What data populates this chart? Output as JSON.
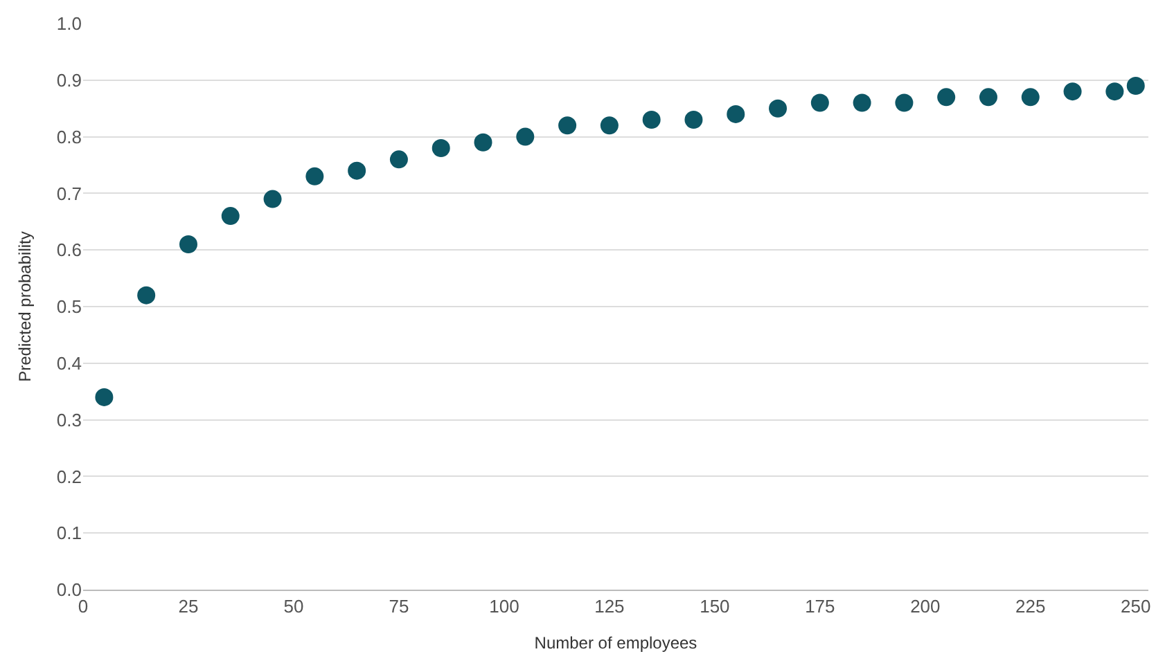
{
  "chart_data": {
    "type": "scatter",
    "xlabel": "Number of employees",
    "ylabel": "Predicted probability",
    "x": [
      5,
      15,
      25,
      35,
      45,
      55,
      65,
      75,
      85,
      95,
      105,
      115,
      125,
      135,
      145,
      155,
      165,
      175,
      185,
      195,
      205,
      215,
      225,
      235,
      245,
      250
    ],
    "series": [
      {
        "color": "#0d5665",
        "values": [
          0.34,
          0.52,
          0.61,
          0.66,
          0.69,
          0.73,
          0.74,
          0.76,
          0.78,
          0.79,
          0.8,
          0.82,
          0.82,
          0.83,
          0.83,
          0.84,
          0.85,
          0.86,
          0.86,
          0.86,
          0.87,
          0.87,
          0.87,
          0.88,
          0.88,
          0.89
        ]
      }
    ],
    "xlim": [
      0,
      253
    ],
    "xticks": [
      0,
      25,
      50,
      75,
      100,
      125,
      150,
      175,
      200,
      225,
      250
    ],
    "ylim": [
      0,
      1
    ],
    "yticks": [
      {
        "value": 0,
        "label": "0.0"
      },
      {
        "value": 0.1,
        "label": "0.1"
      },
      {
        "value": 0.2,
        "label": "0.2"
      },
      {
        "value": 0.3,
        "label": "0.3"
      },
      {
        "value": 0.4,
        "label": "0.4"
      },
      {
        "value": 0.5,
        "label": "0.5"
      },
      {
        "value": 0.6,
        "label": "0.6"
      },
      {
        "value": 0.7,
        "label": "0.7"
      },
      {
        "value": 0.8,
        "label": "0.8"
      },
      {
        "value": 0.9,
        "label": "0.9"
      },
      {
        "value": 1,
        "label": "1.0"
      }
    ],
    "grid": "y",
    "marker": "circle"
  }
}
